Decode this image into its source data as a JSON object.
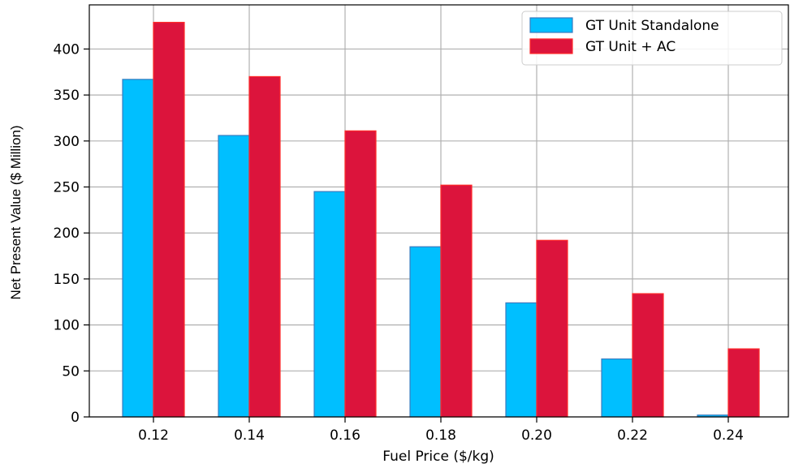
{
  "chart_data": {
    "type": "bar",
    "title": "",
    "xlabel": "Fuel Price ($/kg)",
    "ylabel": "Net Present Value ($ Million)",
    "categories": [
      "0.12",
      "0.14",
      "0.16",
      "0.18",
      "0.20",
      "0.22",
      "0.24"
    ],
    "yticks": [
      0,
      50,
      100,
      150,
      200,
      250,
      300,
      350,
      400
    ],
    "ylim": [
      0,
      448
    ],
    "grid": true,
    "legend_position": "top-right",
    "series": [
      {
        "name": "GT Unit Standalone",
        "color": "#00bfff",
        "edge_color": "#3a7bbf",
        "values": [
          367,
          306,
          245,
          185,
          124,
          63,
          2
        ]
      },
      {
        "name": "GT Unit + AC",
        "color": "#dc143c",
        "edge_color": "#ff2a2a",
        "values": [
          429,
          370,
          311,
          252,
          192,
          134,
          74
        ]
      }
    ]
  }
}
